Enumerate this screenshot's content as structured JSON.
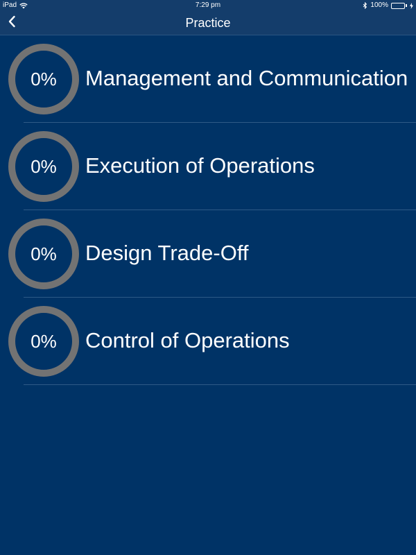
{
  "status_bar": {
    "device": "iPad",
    "time": "7:29 pm",
    "battery": "100%",
    "icons": [
      "wifi-icon",
      "bluetooth-icon",
      "battery-icon",
      "charging-icon"
    ]
  },
  "nav": {
    "title": "Practice",
    "back_icon": "chevron-left-icon"
  },
  "colors": {
    "background": "#003366",
    "bar": "#143d6b",
    "ring": "#737373",
    "battery": "#4cd964"
  },
  "categories": [
    {
      "progress": "0%",
      "progress_value": 0,
      "title": "Management and Communication"
    },
    {
      "progress": "0%",
      "progress_value": 0,
      "title": "Execution of Operations"
    },
    {
      "progress": "0%",
      "progress_value": 0,
      "title": "Design Trade-Off"
    },
    {
      "progress": "0%",
      "progress_value": 0,
      "title": "Control of Operations"
    }
  ]
}
